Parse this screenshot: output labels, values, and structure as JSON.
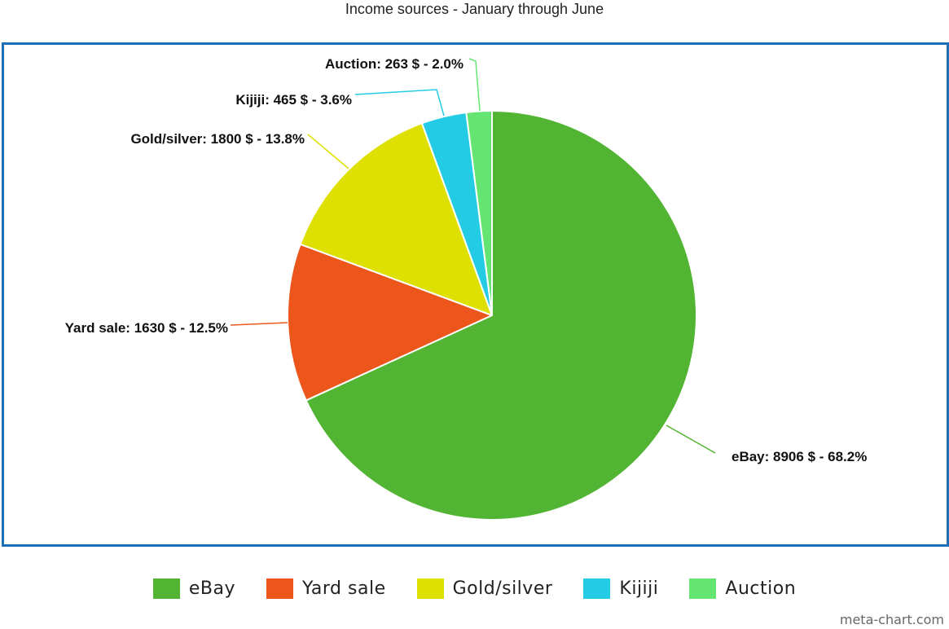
{
  "chart_data": {
    "type": "pie",
    "title": "Income sources - January through June",
    "currency": "$",
    "slices": [
      {
        "name": "eBay",
        "value": 8906,
        "percent": "68.2%",
        "color": "#52b433"
      },
      {
        "name": "Yard sale",
        "value": 1630,
        "percent": "12.5%",
        "color": "#ec561b"
      },
      {
        "name": "Gold/silver",
        "value": 1800,
        "percent": "13.8%",
        "color": "#dde000"
      },
      {
        "name": "Kijiji",
        "value": 465,
        "percent": "3.6%",
        "color": "#24cbe5"
      },
      {
        "name": "Auction",
        "value": 263,
        "percent": "2.0%",
        "color": "#64e572"
      }
    ],
    "legend_position": "bottom",
    "labels": [
      "eBay: 8906 $ - 68.2%",
      "Yard sale: 1630 $ - 12.5%",
      "Gold/silver: 1800 $ - 13.8%",
      "Kijiji: 465 $ - 3.6%",
      "Auction: 263 $ - 2.0%"
    ]
  },
  "frame_color": "#1f6fb5",
  "watermark": "meta-chart.com"
}
